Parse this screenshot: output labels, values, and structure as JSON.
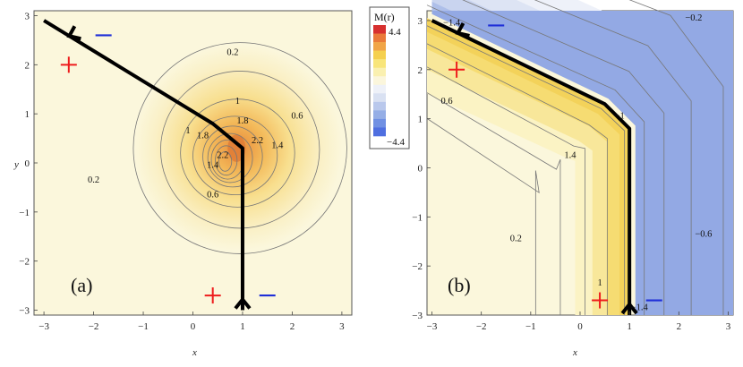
{
  "chart_data": [
    {
      "type": "contour",
      "panel_label": "(a)",
      "xlabel": "x",
      "ylabel": "y",
      "xlim": [
        -3.2,
        3.2
      ],
      "ylim": [
        -3.1,
        3.1
      ],
      "x_ticks": [
        "−3",
        "−2",
        "−1",
        "0",
        "1",
        "2",
        "3"
      ],
      "y_ticks": [
        "−3",
        "−2",
        "−1",
        "0",
        "1",
        "2",
        "3"
      ],
      "contour_labels": [
        {
          "text": "0.2",
          "x": 0.8,
          "y": 2.2
        },
        {
          "text": "0.2",
          "x": -2.0,
          "y": -0.4
        },
        {
          "text": "0.6",
          "x": 2.1,
          "y": 0.9
        },
        {
          "text": "0.6",
          "x": 0.4,
          "y": -0.7
        },
        {
          "text": "1",
          "x": 0.9,
          "y": 1.2
        },
        {
          "text": "1",
          "x": -0.1,
          "y": 0.6
        },
        {
          "text": "1.8",
          "x": 1.0,
          "y": 0.8
        },
        {
          "text": "1.8",
          "x": 0.2,
          "y": 0.5
        },
        {
          "text": "2.2",
          "x": 1.3,
          "y": 0.4
        },
        {
          "text": "2.2",
          "x": 0.6,
          "y": 0.1
        },
        {
          "text": "1.4",
          "x": 1.7,
          "y": 0.3
        },
        {
          "text": "1.4",
          "x": 0.4,
          "y": -0.1
        }
      ],
      "path": [
        [
          1,
          -3
        ],
        [
          1,
          0.3
        ],
        [
          0.4,
          0.8
        ],
        [
          -3,
          2.9
        ]
      ],
      "charges": [
        {
          "sign": "+",
          "x": -2.5,
          "y": 2.0
        },
        {
          "sign": "+",
          "x": 0.4,
          "y": -2.7
        },
        {
          "sign": "−",
          "x": -1.8,
          "y": 2.6
        },
        {
          "sign": "−",
          "x": 1.5,
          "y": -2.7
        }
      ]
    },
    {
      "type": "contour",
      "panel_label": "(b)",
      "xlabel": "x",
      "ylabel": "",
      "xlim": [
        -3.1,
        3.1
      ],
      "ylim": [
        -3.0,
        3.2
      ],
      "x_ticks": [
        "−3",
        "−2",
        "−1",
        "0",
        "1",
        "2",
        "3"
      ],
      "y_ticks": [
        "−3",
        "−2",
        "−1",
        "0",
        "1",
        "2",
        "3"
      ],
      "contour_labels": [
        {
          "text": "−1.4",
          "x": -2.6,
          "y": 2.9
        },
        {
          "text": "−0.2",
          "x": 2.3,
          "y": 3.0
        },
        {
          "text": "0.6",
          "x": -2.7,
          "y": 1.3
        },
        {
          "text": "−1",
          "x": 0.8,
          "y": 1.0
        },
        {
          "text": "1.4",
          "x": -0.2,
          "y": 0.2
        },
        {
          "text": "0.2",
          "x": -1.3,
          "y": -1.5
        },
        {
          "text": "−0.6",
          "x": 2.5,
          "y": -1.4
        },
        {
          "text": "1",
          "x": 0.4,
          "y": -2.4
        },
        {
          "text": "−1.4",
          "x": 1.2,
          "y": -2.9
        }
      ],
      "path": [
        [
          1,
          -3
        ],
        [
          1,
          0.8
        ],
        [
          0.5,
          1.3
        ],
        [
          -3,
          3.0
        ]
      ],
      "charges": [
        {
          "sign": "+",
          "x": -2.5,
          "y": 2.0
        },
        {
          "sign": "+",
          "x": 0.4,
          "y": -2.7
        },
        {
          "sign": "−",
          "x": -1.7,
          "y": 2.9
        },
        {
          "sign": "−",
          "x": 1.5,
          "y": -2.7
        }
      ]
    }
  ],
  "legend": {
    "title": "M(r)",
    "max_label": "4.4",
    "min_label": "−4.4",
    "colors": [
      "#d7302f",
      "#ea7a3a",
      "#f1a547",
      "#f5d04f",
      "#f8e57a",
      "#faf0b0",
      "#fbf6dc",
      "#eef1f8",
      "#d9e1f2",
      "#b9c8ec",
      "#95aee6",
      "#7090e3",
      "#4f6fe0"
    ]
  },
  "colors": {
    "path": "#000000",
    "plus": "#ee1c1c",
    "minus": "#1f2fd8",
    "background": "#fbf7dc"
  }
}
